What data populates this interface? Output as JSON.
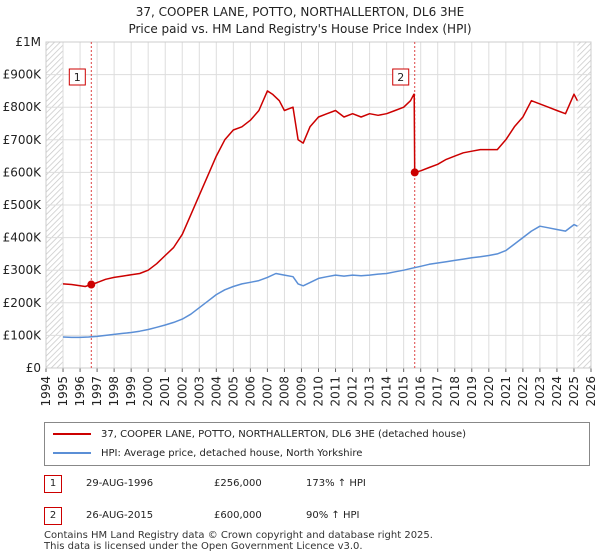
{
  "chart_data": {
    "type": "line",
    "title": "37, COOPER LANE, POTTO, NORTHALLERTON, DL6 3HE",
    "subtitle": "Price paid vs. HM Land Registry's House Price Index (HPI)",
    "xlim": [
      1994,
      2026
    ],
    "ylim": [
      0,
      1000000
    ],
    "x_ticks": [
      1994,
      1995,
      1996,
      1997,
      1998,
      1999,
      2000,
      2001,
      2002,
      2003,
      2004,
      2005,
      2006,
      2007,
      2008,
      2009,
      2010,
      2011,
      2012,
      2013,
      2014,
      2015,
      2016,
      2017,
      2018,
      2019,
      2020,
      2021,
      2022,
      2023,
      2024,
      2025,
      2026
    ],
    "x_tick_labels": [
      "1994",
      "1995",
      "1996",
      "1997",
      "1998",
      "1999",
      "2000",
      "2001",
      "2002",
      "2003",
      "2004",
      "2005",
      "2006",
      "2007",
      "2008",
      "2009",
      "2010",
      "2011",
      "2012",
      "2013",
      "2014",
      "2015",
      "2016",
      "2017",
      "2018",
      "2019",
      "2020",
      "2021",
      "2022",
      "2023",
      "2024",
      "2025",
      "2026"
    ],
    "y_ticks": [
      0,
      100000,
      200000,
      300000,
      400000,
      500000,
      600000,
      700000,
      800000,
      900000,
      1000000
    ],
    "y_tick_labels": [
      "£0",
      "£100K",
      "£200K",
      "£300K",
      "£400K",
      "£500K",
      "£600K",
      "£700K",
      "£800K",
      "£900K",
      "£1M"
    ],
    "grid": true,
    "series": [
      {
        "name": "37, COOPER LANE, POTTO, NORTHALLERTON, DL6 3HE (detached house)",
        "color": "#cc0000",
        "x": [
          1995.0,
          1995.5,
          1996.0,
          1996.3,
          1996.66,
          1997.0,
          1997.5,
          1998.0,
          1998.5,
          1999.0,
          1999.5,
          2000.0,
          2000.5,
          2001.0,
          2001.5,
          2002.0,
          2002.5,
          2003.0,
          2003.5,
          2004.0,
          2004.5,
          2005.0,
          2005.5,
          2006.0,
          2006.5,
          2007.0,
          2007.3,
          2007.7,
          2008.0,
          2008.5,
          2008.8,
          2009.1,
          2009.5,
          2010.0,
          2010.5,
          2011.0,
          2011.5,
          2012.0,
          2012.5,
          2013.0,
          2013.5,
          2014.0,
          2014.5,
          2015.0,
          2015.4,
          2015.6,
          2015.62,
          2015.65,
          2016.0,
          2016.5,
          2017.0,
          2017.5,
          2018.0,
          2018.5,
          2019.0,
          2019.5,
          2020.0,
          2020.5,
          2021.0,
          2021.5,
          2022.0,
          2022.5,
          2023.0,
          2023.5,
          2024.0,
          2024.5,
          2025.0,
          2025.2
        ],
        "values": [
          258000,
          256000,
          252000,
          250000,
          256000,
          262000,
          272000,
          278000,
          282000,
          286000,
          290000,
          300000,
          320000,
          345000,
          370000,
          410000,
          470000,
          530000,
          590000,
          650000,
          700000,
          730000,
          740000,
          760000,
          790000,
          850000,
          840000,
          820000,
          790000,
          800000,
          700000,
          690000,
          740000,
          770000,
          780000,
          790000,
          770000,
          780000,
          770000,
          780000,
          775000,
          780000,
          790000,
          800000,
          820000,
          840000,
          840000,
          600000,
          605000,
          615000,
          625000,
          640000,
          650000,
          660000,
          665000,
          670000,
          670000,
          670000,
          700000,
          740000,
          770000,
          820000,
          810000,
          800000,
          790000,
          780000,
          840000,
          820000
        ]
      },
      {
        "name": "HPI: Average price, detached house, North Yorkshire",
        "color": "#5b8fd6",
        "x": [
          1995.0,
          1995.5,
          1996.0,
          1996.5,
          1997.0,
          1997.5,
          1998.0,
          1998.5,
          1999.0,
          1999.5,
          2000.0,
          2000.5,
          2001.0,
          2001.5,
          2002.0,
          2002.5,
          2003.0,
          2003.5,
          2004.0,
          2004.5,
          2005.0,
          2005.5,
          2006.0,
          2006.5,
          2007.0,
          2007.5,
          2008.0,
          2008.5,
          2008.8,
          2009.1,
          2009.5,
          2010.0,
          2010.5,
          2011.0,
          2011.5,
          2012.0,
          2012.5,
          2013.0,
          2013.5,
          2014.0,
          2014.5,
          2015.0,
          2015.5,
          2016.0,
          2016.5,
          2017.0,
          2017.5,
          2018.0,
          2018.5,
          2019.0,
          2019.5,
          2020.0,
          2020.5,
          2021.0,
          2021.5,
          2022.0,
          2022.5,
          2023.0,
          2023.5,
          2024.0,
          2024.5,
          2025.0,
          2025.2
        ],
        "values": [
          95000,
          94000,
          94000,
          95000,
          97000,
          100000,
          103000,
          106000,
          109000,
          113000,
          118000,
          125000,
          132000,
          140000,
          150000,
          165000,
          185000,
          205000,
          225000,
          240000,
          250000,
          258000,
          263000,
          268000,
          278000,
          290000,
          285000,
          280000,
          258000,
          252000,
          262000,
          275000,
          280000,
          285000,
          282000,
          285000,
          283000,
          285000,
          288000,
          290000,
          295000,
          300000,
          306000,
          312000,
          318000,
          322000,
          326000,
          330000,
          334000,
          338000,
          341000,
          345000,
          350000,
          360000,
          380000,
          400000,
          420000,
          435000,
          430000,
          425000,
          420000,
          440000,
          435000
        ]
      }
    ],
    "markers": [
      {
        "label": "1",
        "x": 1996.66,
        "value": 256000
      },
      {
        "label": "2",
        "x": 2015.65,
        "value": 600000
      }
    ],
    "hatched_ranges": [
      [
        1994,
        1995.0
      ],
      [
        2025.2,
        2026
      ]
    ]
  },
  "legend": {
    "entries": [
      {
        "label": "37, COOPER LANE, POTTO, NORTHALLERTON, DL6 3HE (detached house)",
        "color": "#cc0000"
      },
      {
        "label": "HPI: Average price, detached house, North Yorkshire",
        "color": "#5b8fd6"
      }
    ]
  },
  "sales": [
    {
      "num": "1",
      "date": "29-AUG-1996",
      "price": "£256,000",
      "hpi": "173% ↑ HPI"
    },
    {
      "num": "2",
      "date": "26-AUG-2015",
      "price": "£600,000",
      "hpi": "90% ↑ HPI"
    }
  ],
  "footer": {
    "line1": "Contains HM Land Registry data © Crown copyright and database right 2025.",
    "line2": "This data is licensed under the Open Government Licence v3.0."
  }
}
